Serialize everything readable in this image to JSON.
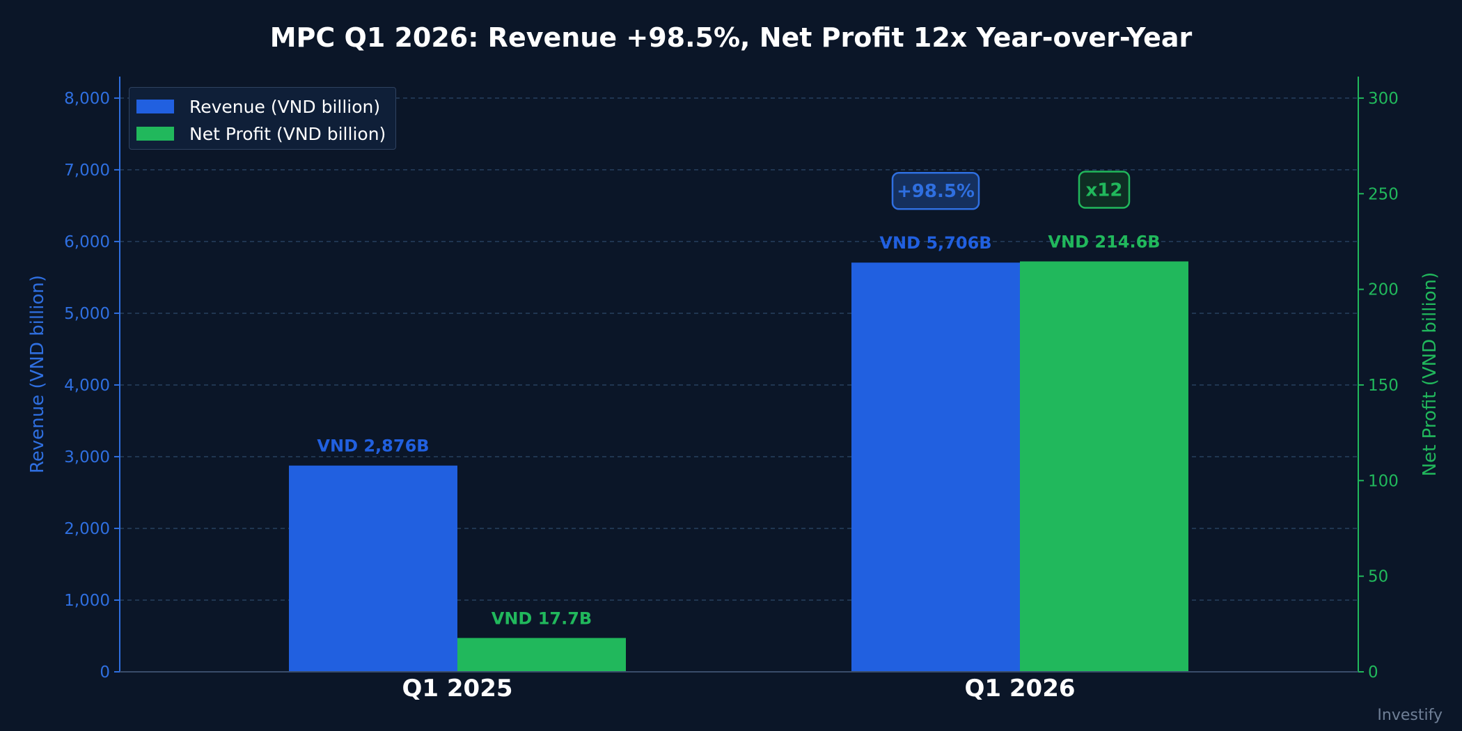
{
  "chart_data": {
    "type": "bar",
    "title": "MPC Q1 2026: Revenue +98.5%, Net Profit 12x Year-over-Year",
    "categories": [
      "Q1 2025",
      "Q1 2026"
    ],
    "series": [
      {
        "name": "Revenue (VND billion)",
        "axis": "left",
        "color": "#2160e0",
        "values": [
          2876,
          5706
        ],
        "value_labels": [
          "VND 2,876B",
          "VND 5,706B"
        ]
      },
      {
        "name": "Net Profit (VND billion)",
        "axis": "right",
        "color": "#21b85c",
        "values": [
          17.7,
          214.6
        ],
        "value_labels": [
          "VND 17.7B",
          "VND 214.6B"
        ]
      }
    ],
    "y_left": {
      "label": "Revenue (VND billion)",
      "range": [
        0,
        8300
      ],
      "ticks": [
        0,
        1000,
        2000,
        3000,
        4000,
        5000,
        6000,
        7000,
        8000
      ],
      "tick_labels": [
        "0",
        "1,000",
        "2,000",
        "3,000",
        "4,000",
        "5,000",
        "6,000",
        "7,000",
        "8,000"
      ],
      "color": "#2f6fe0"
    },
    "y_right": {
      "label": "Net Profit (VND billion)",
      "range": [
        0,
        311.25
      ],
      "ticks": [
        0,
        50,
        100,
        150,
        200,
        250,
        300
      ],
      "tick_labels": [
        "0",
        "50",
        "100",
        "150",
        "200",
        "250",
        "300"
      ],
      "color": "#21b85c"
    },
    "annotations": [
      {
        "text": "+98.5%",
        "series": 0,
        "category": 1,
        "color": "#2f6fe0"
      },
      {
        "text": "x12",
        "series": 1,
        "category": 1,
        "color": "#21b85c"
      }
    ],
    "grid": true,
    "legend_position": "top-left"
  },
  "watermark": "Investify"
}
